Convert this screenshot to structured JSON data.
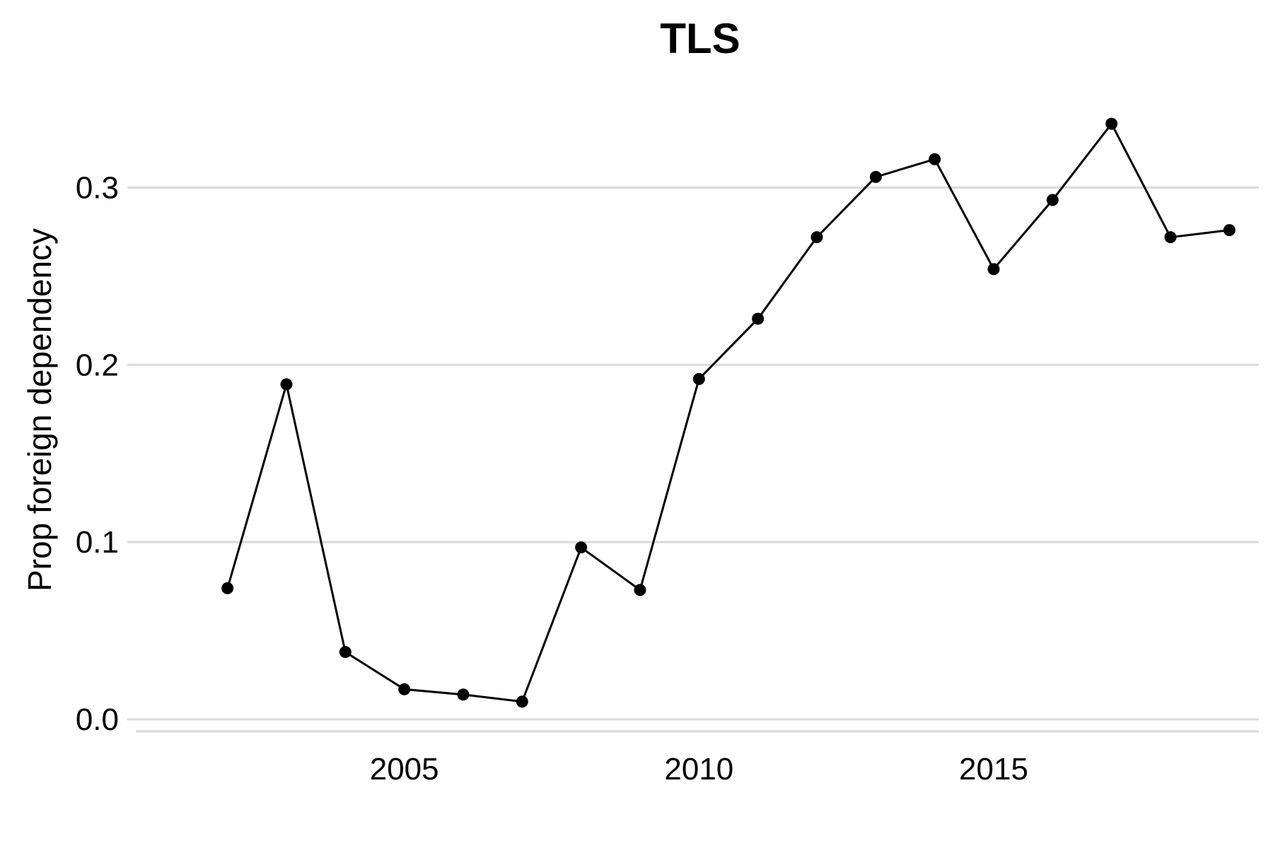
{
  "chart_data": {
    "type": "line",
    "title": "TLS",
    "xlabel": "",
    "ylabel": "Prop foreign dependency",
    "x": [
      2002,
      2003,
      2004,
      2005,
      2006,
      2007,
      2008,
      2009,
      2010,
      2011,
      2012,
      2013,
      2014,
      2015,
      2016,
      2017,
      2018,
      2019
    ],
    "series": [
      {
        "values": [
          0.074,
          0.189,
          0.038,
          0.017,
          0.014,
          0.01,
          0.097,
          0.073,
          0.192,
          0.226,
          0.272,
          0.306,
          0.316,
          0.254,
          0.293,
          0.336,
          0.272,
          0.276
        ]
      }
    ],
    "xlim": [
      2000.3,
      2019.5
    ],
    "ylim": [
      0,
      0.35
    ],
    "xticks": [
      2005,
      2010,
      2015
    ],
    "xtick_labels": [
      "2005",
      "2010",
      "2015"
    ],
    "yticks": [
      0.0,
      0.1,
      0.2,
      0.3
    ],
    "ytick_labels": [
      "0.0",
      "0.1",
      "0.2",
      "0.3"
    ],
    "grid": "horizontal",
    "legend": "none",
    "colors": {
      "line": "#000000",
      "grid": "#d9d9d9"
    }
  }
}
